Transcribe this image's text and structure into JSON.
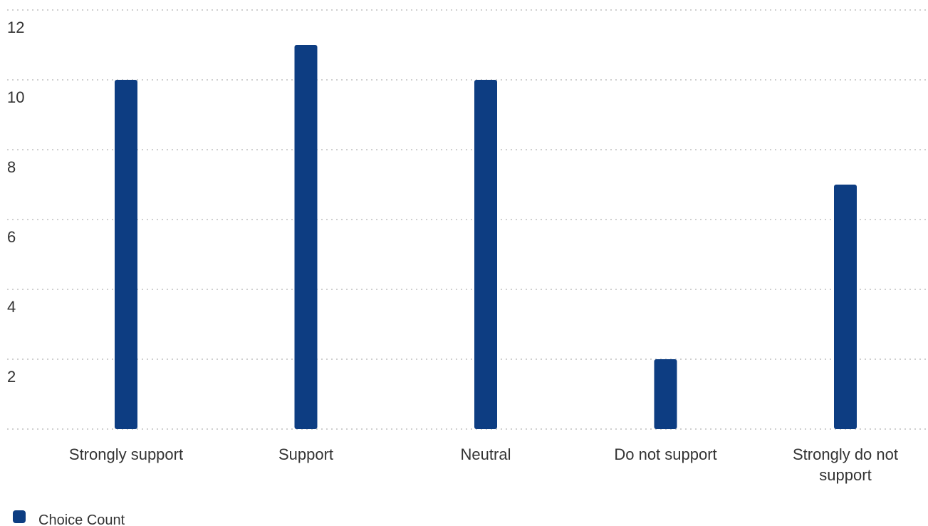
{
  "chart_data": {
    "type": "bar",
    "categories": [
      "Strongly support",
      "Support",
      "Neutral",
      "Do not support",
      "Strongly do not support"
    ],
    "category_lines": [
      [
        "Strongly support"
      ],
      [
        "Support"
      ],
      [
        "Neutral"
      ],
      [
        "Do not support"
      ],
      [
        "Strongly do not",
        "support"
      ]
    ],
    "series": [
      {
        "name": "Choice Count",
        "values": [
          10,
          11,
          10,
          2,
          7
        ]
      }
    ],
    "ylim": [
      0,
      12
    ],
    "yticks": [
      2,
      4,
      6,
      8,
      10,
      12
    ],
    "grid": true,
    "legend_position": "bottom-left",
    "colors": {
      "bar": "#0d3d82"
    },
    "title": "",
    "xlabel": "",
    "ylabel": ""
  }
}
